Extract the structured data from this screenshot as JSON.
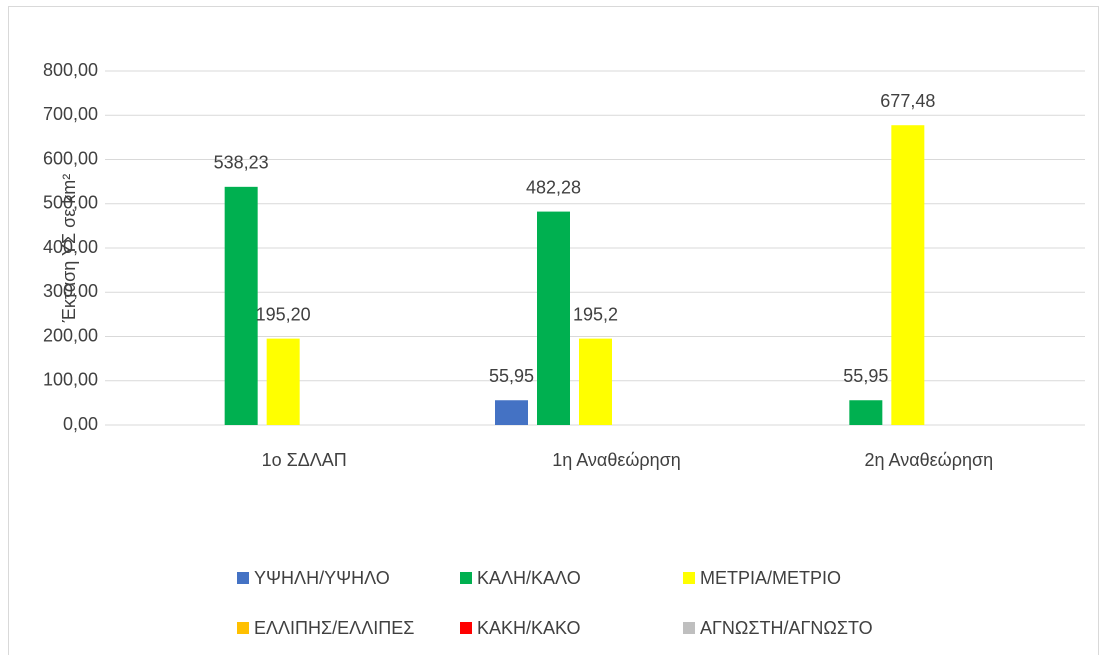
{
  "chart_data": {
    "type": "bar",
    "y_axis_label": "Έκταση ΥΣ σε km²",
    "categories": [
      "1ο ΣΔΛΑΠ",
      "1η Αναθεώρηση",
      "2η Αναθεώρηση"
    ],
    "series": [
      {
        "name": "ΥΨΗΛΗ/ΥΨΗΛΟ",
        "color": "#4472c4",
        "values": [
          null,
          55.95,
          null
        ],
        "value_labels": [
          null,
          "55,95",
          null
        ]
      },
      {
        "name": "ΚΑΛΗ/ΚΑΛΟ",
        "color": "#00b050",
        "values": [
          538.23,
          482.28,
          55.95
        ],
        "value_labels": [
          "538,23",
          "482,28",
          "55,95"
        ]
      },
      {
        "name": "ΜΕΤΡΙΑ/ΜΕΤΡΙΟ",
        "color": "#ffff00",
        "values": [
          195.2,
          195.2,
          677.48
        ],
        "value_labels": [
          "195,20",
          "195,2",
          "677,48"
        ]
      },
      {
        "name": "ΕΛΛΙΠΗΣ/ΕΛΛΙΠΕΣ",
        "color": "#ffc000",
        "values": [
          null,
          null,
          null
        ]
      },
      {
        "name": "ΚΑΚΗ/ΚΑΚΟ",
        "color": "#ff0000",
        "values": [
          null,
          null,
          null
        ]
      },
      {
        "name": "ΑΓΝΩΣΤΗ/ΑΓΝΩΣΤΟ",
        "color": "#bfbfbf",
        "values": [
          null,
          null,
          null
        ]
      }
    ],
    "ylim": [
      0,
      800
    ],
    "yticks": [
      {
        "value": 0,
        "label": "0,00"
      },
      {
        "value": 100,
        "label": "100,00"
      },
      {
        "value": 200,
        "label": "200,00"
      },
      {
        "value": 300,
        "label": "300,00"
      },
      {
        "value": 400,
        "label": "400,00"
      },
      {
        "value": 500,
        "label": "500,00"
      },
      {
        "value": 600,
        "label": "600,00"
      },
      {
        "value": 700,
        "label": "700,00"
      },
      {
        "value": 800,
        "label": "800,00"
      }
    ],
    "grid": true,
    "legend": "bottom"
  }
}
